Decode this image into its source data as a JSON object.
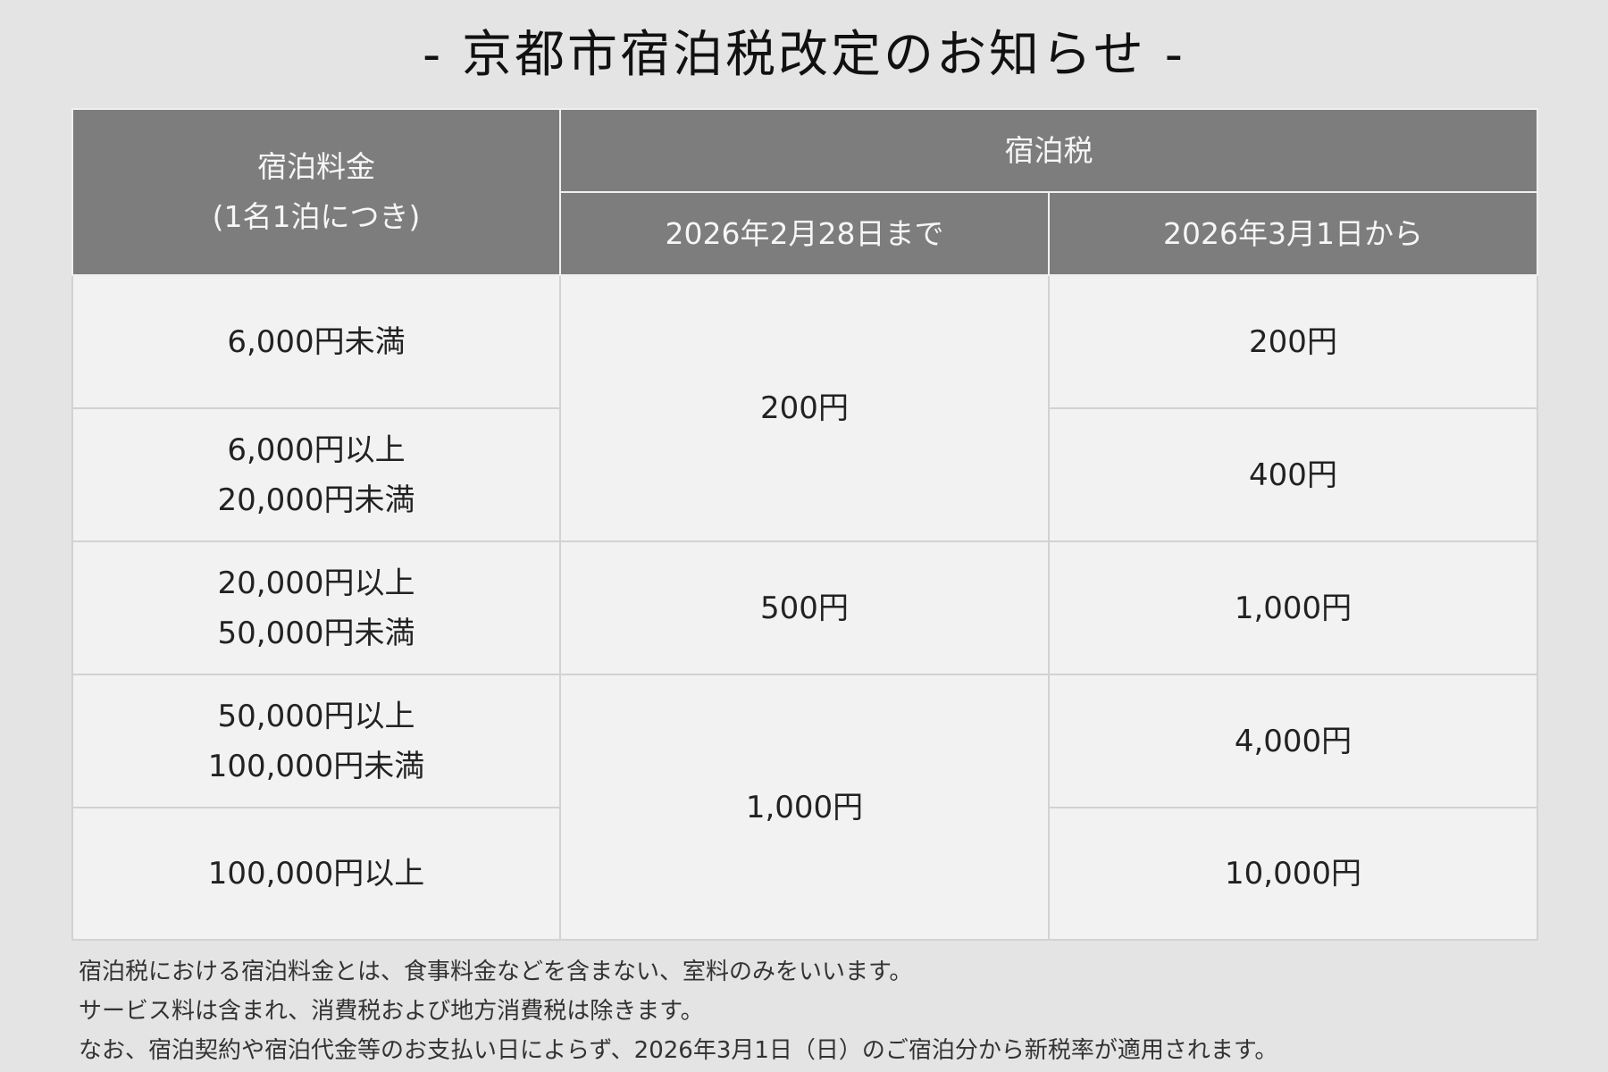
{
  "title": "- 京都市宿泊税改定のお知らせ -",
  "table": {
    "header": {
      "fee_line1": "宿泊料金",
      "fee_line2": "(1名1泊につき)",
      "tax": "宿泊税",
      "before": "2026年2月28日まで",
      "after": "2026年3月1日から"
    },
    "rows": [
      {
        "range_line1": "6,000円未満",
        "range_line2": "",
        "after": "200円"
      },
      {
        "range_line1": "6,000円以上",
        "range_line2": "20,000円未満",
        "after": "400円"
      },
      {
        "range_line1": "20,000円以上",
        "range_line2": "50,000円未満",
        "after": "1,000円"
      },
      {
        "range_line1": "50,000円以上",
        "range_line2": "100,000円未満",
        "after": "4,000円"
      },
      {
        "range_line1": "100,000円以上",
        "range_line2": "",
        "after": "10,000円"
      }
    ],
    "before_groups": [
      "200円",
      "500円",
      "1,000円"
    ]
  },
  "notes": [
    "宿泊税における宿泊料金とは、食事料金などを含まない、室料のみをいいます。",
    "サービス料は含まれ、消費税および地方消費税は除きます。",
    "なお、宿泊契約や宿泊代金等のお支払い日によらず、2026年3月1日（日）のご宿泊分から新税率が適用されます。"
  ],
  "colors": {
    "background": "#e4e4e4",
    "header_bg": "#7d7d7d",
    "header_text": "#f6f6f6",
    "cell_bg": "#f2f2f2"
  }
}
